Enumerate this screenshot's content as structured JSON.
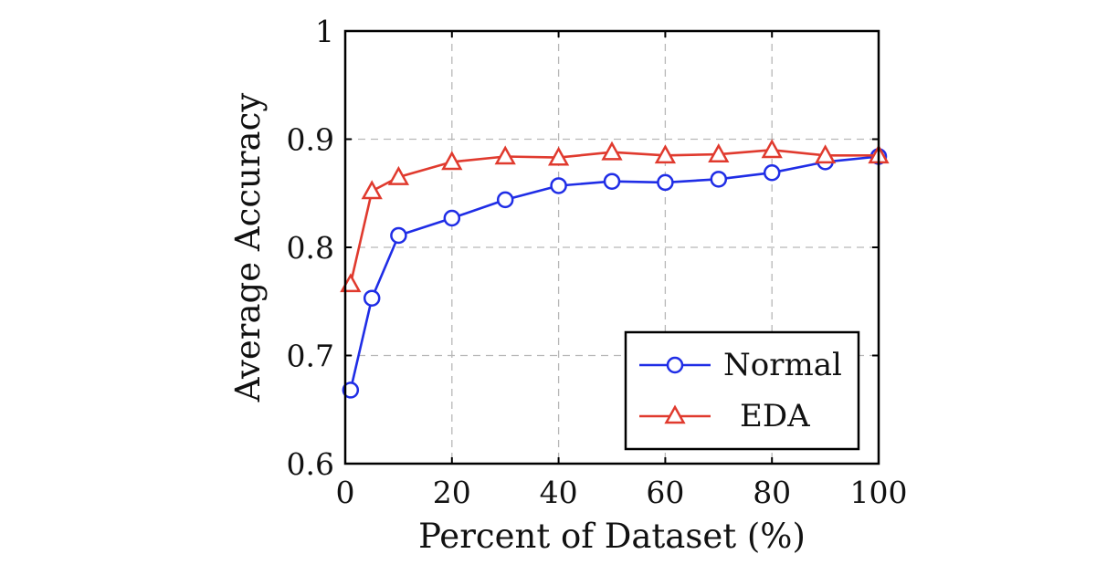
{
  "chart_data": {
    "type": "line",
    "title": "",
    "xlabel": "Percent of Dataset (%)",
    "ylabel": "Average Accuracy",
    "xlim": [
      0,
      100
    ],
    "ylim": [
      0.6,
      1
    ],
    "xticks": [
      0,
      20,
      40,
      60,
      80,
      100
    ],
    "yticks": [
      0.6,
      0.7,
      0.8,
      0.9,
      1
    ],
    "xtick_labels": [
      "0",
      "20",
      "40",
      "60",
      "80",
      "100"
    ],
    "ytick_labels": [
      "0.6",
      "0.7",
      "0.8",
      "0.9",
      "1"
    ],
    "grid": true,
    "legend_position": "bottom-right",
    "series": [
      {
        "name": "Normal",
        "color": "#1f2de6",
        "marker": "circle",
        "x": [
          1,
          5,
          10,
          20,
          30,
          40,
          50,
          60,
          70,
          80,
          90,
          100
        ],
        "y": [
          0.668,
          0.753,
          0.811,
          0.827,
          0.844,
          0.857,
          0.861,
          0.86,
          0.863,
          0.869,
          0.879,
          0.884
        ]
      },
      {
        "name": "EDA",
        "color": "#e03a2e",
        "marker": "triangle",
        "x": [
          1,
          5,
          10,
          20,
          30,
          40,
          50,
          60,
          70,
          80,
          90,
          100
        ],
        "y": [
          0.766,
          0.852,
          0.865,
          0.879,
          0.884,
          0.883,
          0.888,
          0.885,
          0.886,
          0.89,
          0.885,
          0.885
        ]
      }
    ]
  }
}
